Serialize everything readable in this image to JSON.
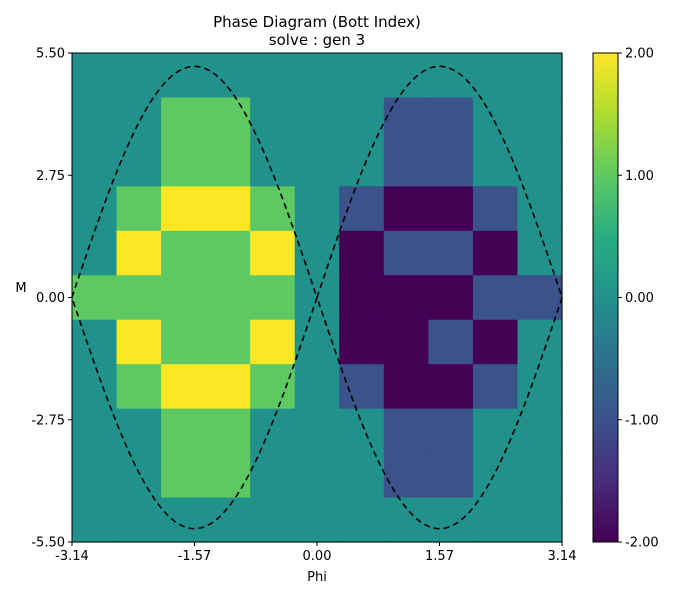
{
  "chart_data": {
    "type": "heatmap",
    "title": "Phase Diagram (Bott Index)",
    "subtitle": "solve : gen 3",
    "xlabel": "Phi",
    "ylabel": "M",
    "xlim": [
      -3.14,
      3.14
    ],
    "ylim": [
      -5.5,
      5.5
    ],
    "x_ticks": [
      -3.14,
      -1.57,
      0.0,
      1.57,
      3.14
    ],
    "x_tick_labels": [
      "-3.14",
      "-1.57",
      "0.00",
      "1.57",
      "3.14"
    ],
    "y_ticks": [
      -5.5,
      -2.75,
      0.0,
      2.75,
      5.5
    ],
    "y_tick_labels": [
      "-5.50",
      "-2.75",
      "0.00",
      "2.75",
      "5.50"
    ],
    "colormap": "viridis",
    "color_range": [
      -2,
      2
    ],
    "colorbar_ticks": [
      -2,
      -1,
      0,
      1,
      2
    ],
    "colorbar_tick_labels": [
      "-2.00",
      "-1.00",
      "0.00",
      "1.00",
      "2.00"
    ],
    "grid_note": "rows listed from top (M = 5.5) to bottom (M = -5.5); columns from Phi = -3.14 to 3.14",
    "grid": [
      [
        0,
        0,
        0,
        0,
        0,
        0,
        0,
        0,
        0,
        0,
        0
      ],
      [
        0,
        0,
        1,
        1,
        0,
        0,
        0,
        -1,
        -1,
        0,
        0
      ],
      [
        0,
        0,
        1,
        1,
        0,
        0,
        0,
        -1,
        -1,
        0,
        0
      ],
      [
        0,
        1,
        2,
        2,
        1,
        0,
        -1,
        -2,
        -2,
        -1,
        0
      ],
      [
        0,
        2,
        1,
        1,
        2,
        0,
        -2,
        -1,
        -1,
        -2,
        0
      ],
      [
        1,
        1,
        1,
        1,
        1,
        0,
        -2,
        -2,
        -2,
        -1,
        -1
      ],
      [
        0,
        2,
        1,
        1,
        2,
        0,
        -2,
        -2,
        -1,
        -2,
        0
      ],
      [
        0,
        1,
        2,
        2,
        1,
        0,
        -1,
        -2,
        -2,
        -1,
        0
      ],
      [
        0,
        0,
        1,
        1,
        0,
        0,
        0,
        -1,
        -1,
        0,
        0
      ],
      [
        0,
        0,
        1,
        1,
        0,
        0,
        0,
        -1,
        -1,
        0,
        0
      ],
      [
        0,
        0,
        0,
        0,
        0,
        0,
        0,
        0,
        0,
        0,
        0
      ]
    ],
    "boundary_curve": {
      "style": "dashed",
      "color": "#000000",
      "description": "M = ±5.2·|sin(Phi)|"
    },
    "colors": {
      "-2": "#440154",
      "-1": "#3b528b",
      "0": "#21918c",
      "1": "#5ec962",
      "2": "#fde725"
    }
  }
}
